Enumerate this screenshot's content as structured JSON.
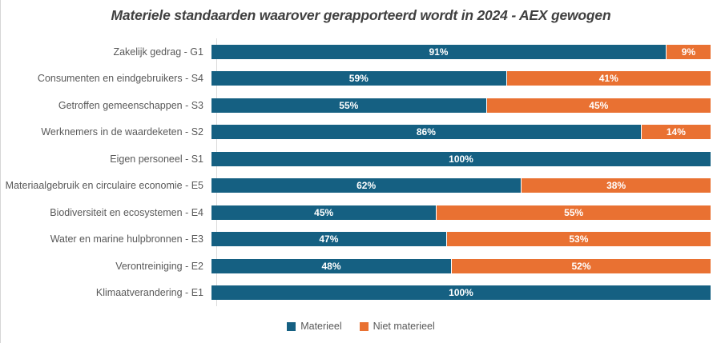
{
  "title": "Materiele standaarden waarover gerapporteerd wordt in 2024 - AEX gewogen",
  "colors": {
    "materieel": "#156082",
    "niet_materieel": "#E97132",
    "title_text": "#404040",
    "axis_text": "#595959",
    "axis_line": "#d9d9d9",
    "value_label_text": "#ffffff"
  },
  "legend": [
    {
      "label": "Materieel",
      "color": "#156082"
    },
    {
      "label": "Niet materieel",
      "color": "#E97132"
    }
  ],
  "chart_data": {
    "type": "bar",
    "orientation": "horizontal",
    "stacked": true,
    "title": "Materiele standaarden waarover gerapporteerd wordt in 2024 - AEX gewogen",
    "categories": [
      "Zakelijk gedrag - G1",
      "Consumenten en eindgebruikers - S4",
      "Getroffen gemeenschappen - S3",
      "Werknemers in de waardeketen - S2",
      "Eigen personeel - S1",
      "Materiaalgebruik en circulaire economie - E5",
      "Biodiversiteit en ecosystemen - E4",
      "Water en marine hulpbronnen - E3",
      "Verontreiniging - E2",
      "Klimaatverandering - E1"
    ],
    "series": [
      {
        "name": "Materieel",
        "values": [
          91,
          59,
          55,
          86,
          100,
          62,
          45,
          47,
          48,
          100
        ]
      },
      {
        "name": "Niet materieel",
        "values": [
          9,
          41,
          45,
          14,
          0,
          38,
          55,
          53,
          52,
          0
        ]
      }
    ],
    "value_suffix": "%",
    "xlim": [
      0,
      100
    ],
    "xlabel": "",
    "ylabel": "",
    "grid": false,
    "legend_position": "bottom",
    "data_labels": true
  }
}
